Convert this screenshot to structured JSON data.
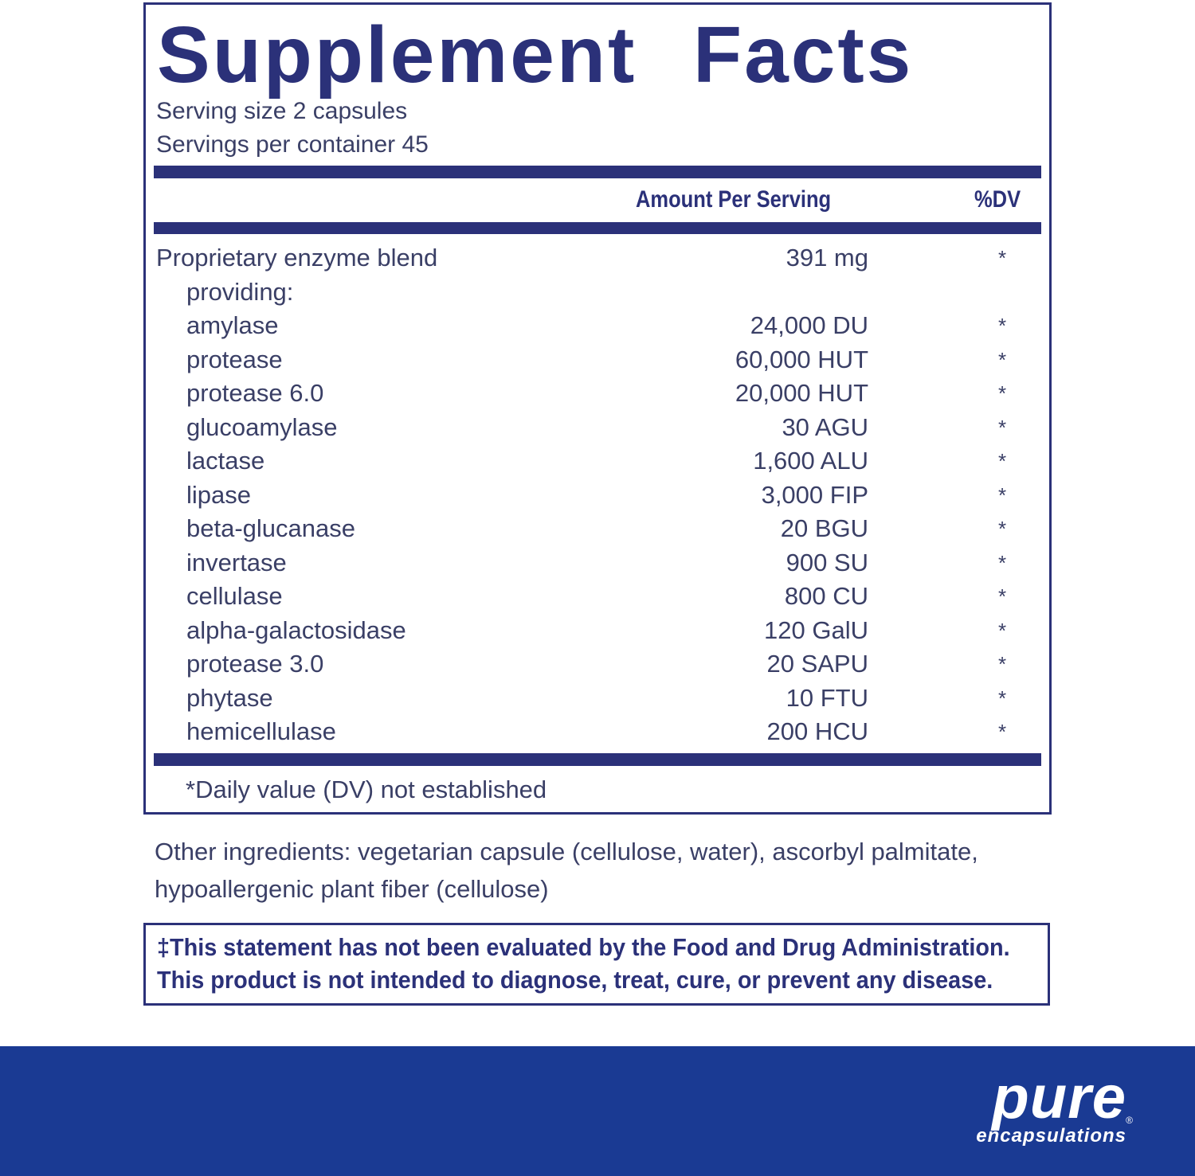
{
  "title": "Supplement Facts",
  "serving_size": "Serving size  2 capsules",
  "servings_per_container": "Servings per container  45",
  "header": {
    "amount": "Amount Per Serving",
    "dv": "%DV"
  },
  "rows": [
    {
      "name": "Proprietary enzyme blend",
      "amount": "391 mg",
      "dv": "*"
    },
    {
      "name": "providing:",
      "amount": "",
      "dv": ""
    },
    {
      "name": "amylase",
      "amount": "24,000 DU",
      "dv": "*"
    },
    {
      "name": "protease",
      "amount": "60,000 HUT",
      "dv": "*"
    },
    {
      "name": "protease 6.0",
      "amount": "20,000 HUT",
      "dv": "*"
    },
    {
      "name": "glucoamylase",
      "amount": "30 AGU",
      "dv": "*"
    },
    {
      "name": "lactase",
      "amount": "1,600 ALU",
      "dv": "*"
    },
    {
      "name": "lipase",
      "amount": "3,000 FIP",
      "dv": "*"
    },
    {
      "name": "beta-glucanase",
      "amount": "20 BGU",
      "dv": "*"
    },
    {
      "name": "invertase",
      "amount": "900 SU",
      "dv": "*"
    },
    {
      "name": "cellulase",
      "amount": "800 CU",
      "dv": "*"
    },
    {
      "name": "alpha-galactosidase",
      "amount": "120 GalU",
      "dv": "*"
    },
    {
      "name": "protease 3.0",
      "amount": "20 SAPU",
      "dv": "*"
    },
    {
      "name": "phytase",
      "amount": "10 FTU",
      "dv": "*"
    },
    {
      "name": "hemicellulase",
      "amount": "200 HCU",
      "dv": "*"
    }
  ],
  "footnote": "*Daily value (DV) not established",
  "other_ingredients": "Other ingredients: vegetarian capsule (cellulose, water), ascorbyl palmitate, hypoallergenic plant fiber (cellulose)",
  "disclaimer": {
    "line1": "‡This statement has not been evaluated by the Food and Drug Administration.",
    "line2": "This product is not intended to diagnose, treat, cure, or prevent any disease."
  },
  "logo": {
    "word": "pure",
    "sub": "encapsulations",
    "mark": "®"
  },
  "colors": {
    "navy": "#2b3179",
    "band": "#1a3a93",
    "text": "#3a3f66"
  }
}
